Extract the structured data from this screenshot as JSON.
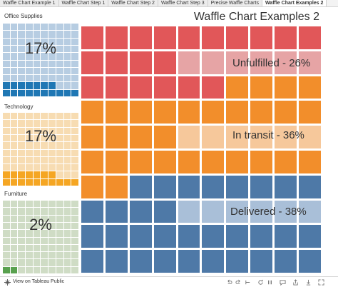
{
  "tabs": [
    {
      "label": "Waffle Chart Example 1",
      "active": false
    },
    {
      "label": "Waffle Chart Step 1",
      "active": false
    },
    {
      "label": "Waffle Chart Step 2",
      "active": false
    },
    {
      "label": "Waffle Chart Step 3",
      "active": false
    },
    {
      "label": "Precise Waffle Charts",
      "active": false
    },
    {
      "label": "Waffle Chart Examples 2",
      "active": true
    }
  ],
  "title": "Waffle Chart Examples 2",
  "side": [
    {
      "label": "Office Supplies",
      "pct": "17%",
      "value": 17,
      "fill": "#1f77b4",
      "bg": "#b7cde2"
    },
    {
      "label": "Technology",
      "pct": "17%",
      "value": 17,
      "fill": "#f5a623",
      "bg": "#f7dcb2"
    },
    {
      "label": "Furniture",
      "pct": "2%",
      "value": 2,
      "fill": "#59a14f",
      "bg": "#cfdcc5"
    }
  ],
  "chart_data": {
    "type": "waffle",
    "title": "Waffle Chart Examples 2",
    "series": [
      {
        "name": "Unfulfilled",
        "label": "Unfulfilled - 26%",
        "value": 26,
        "color": "#e15759",
        "light": "#e6a4a5"
      },
      {
        "name": "In transit",
        "label": "In transit - 36%",
        "value": 36,
        "color": "#f28e2b",
        "light": "#f6c89b"
      },
      {
        "name": "Delivered",
        "label": "Delivered - 38%",
        "value": 38,
        "color": "#4e79a7",
        "light": "#a9bfd8"
      }
    ]
  },
  "footer": {
    "tableau_label": "View on Tableau Public",
    "icons": [
      "undo-icon",
      "redo-icon",
      "revert-icon",
      "refresh-icon",
      "pause-icon",
      "comment-icon",
      "share-icon",
      "download-icon",
      "fullscreen-icon"
    ]
  }
}
